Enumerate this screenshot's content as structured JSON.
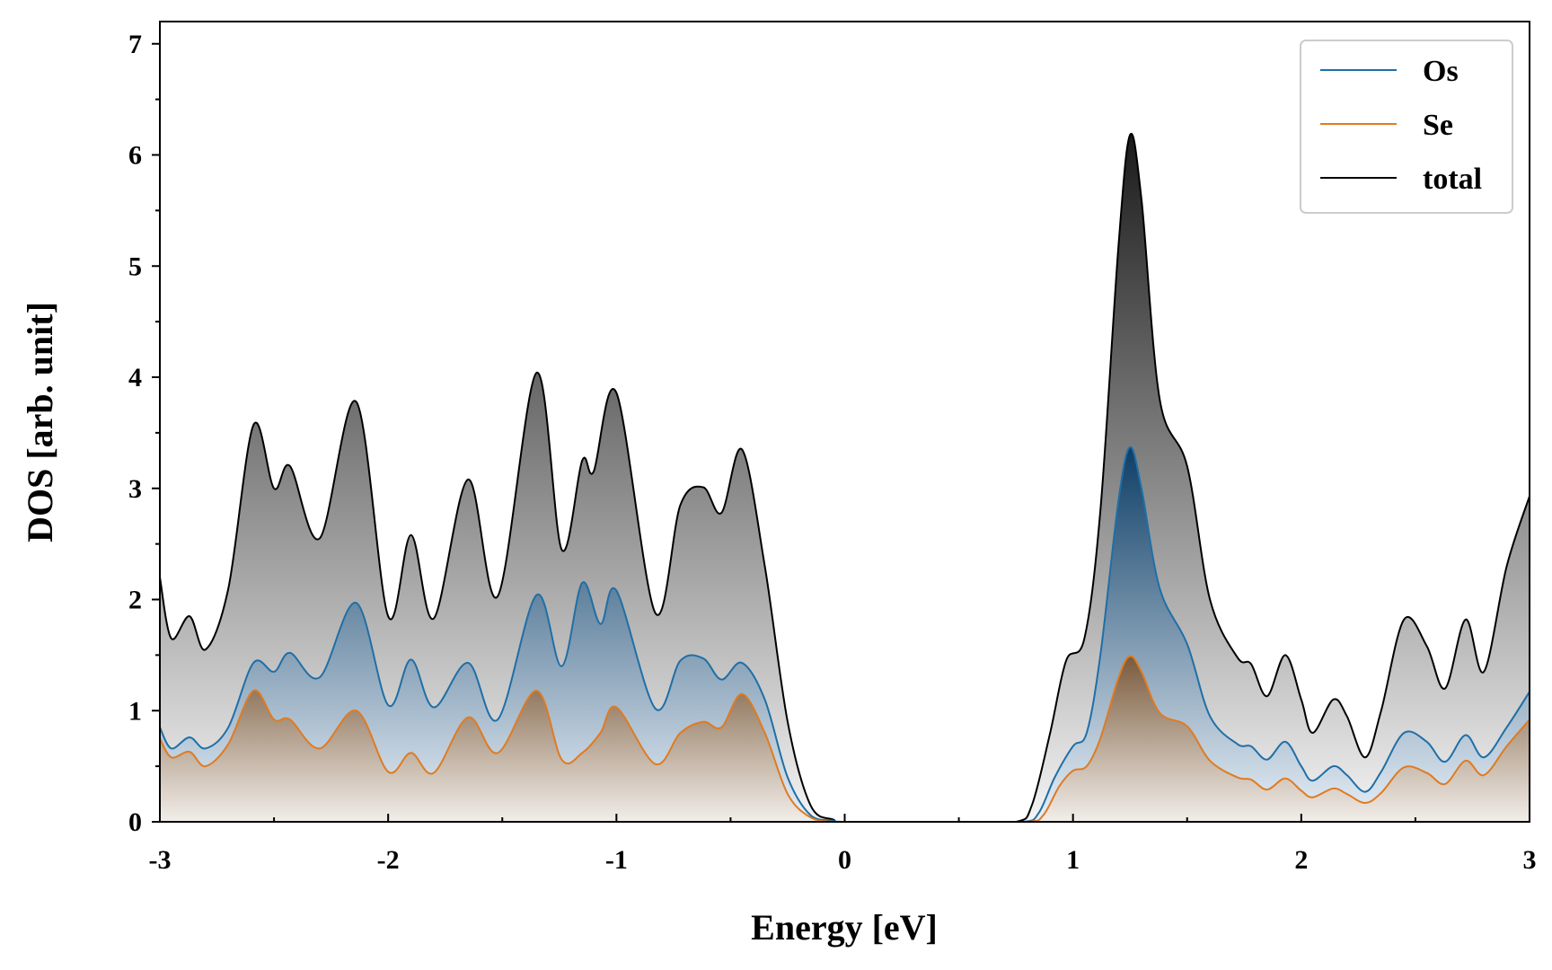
{
  "chart_data": {
    "type": "line",
    "title": "",
    "xlabel": "Energy [eV]",
    "ylabel": "DOS [arb. unit]",
    "xlim": [
      -3,
      3
    ],
    "ylim": [
      0,
      7.2
    ],
    "x_ticks": [
      -3,
      -2,
      -1,
      0,
      1,
      2,
      3
    ],
    "y_ticks": [
      0,
      1,
      2,
      3,
      4,
      5,
      6,
      7
    ],
    "legend_position": "top-right",
    "fill_under_curves": true,
    "series": [
      {
        "name": "total",
        "color": "#000000",
        "points": [
          [
            -3.0,
            2.2
          ],
          [
            -2.95,
            1.65
          ],
          [
            -2.87,
            1.85
          ],
          [
            -2.8,
            1.55
          ],
          [
            -2.7,
            2.1
          ],
          [
            -2.59,
            3.57
          ],
          [
            -2.5,
            3.0
          ],
          [
            -2.43,
            3.2
          ],
          [
            -2.3,
            2.55
          ],
          [
            -2.14,
            3.78
          ],
          [
            -2.0,
            1.85
          ],
          [
            -1.9,
            2.58
          ],
          [
            -1.8,
            1.83
          ],
          [
            -1.65,
            3.08
          ],
          [
            -1.52,
            2.03
          ],
          [
            -1.35,
            4.04
          ],
          [
            -1.24,
            2.45
          ],
          [
            -1.15,
            3.25
          ],
          [
            -1.1,
            3.15
          ],
          [
            -1.0,
            3.86
          ],
          [
            -0.83,
            1.88
          ],
          [
            -0.72,
            2.85
          ],
          [
            -0.62,
            3.01
          ],
          [
            -0.54,
            2.78
          ],
          [
            -0.45,
            3.35
          ],
          [
            -0.35,
            2.3
          ],
          [
            -0.25,
            0.9
          ],
          [
            -0.15,
            0.15
          ],
          [
            -0.05,
            0.02
          ],
          [
            0.0,
            0.0
          ],
          [
            0.5,
            0.0
          ],
          [
            0.75,
            0.0
          ],
          [
            0.82,
            0.15
          ],
          [
            0.9,
            0.8
          ],
          [
            0.97,
            1.45
          ],
          [
            1.05,
            1.65
          ],
          [
            1.12,
            2.8
          ],
          [
            1.2,
            5.2
          ],
          [
            1.25,
            6.18
          ],
          [
            1.3,
            5.6
          ],
          [
            1.38,
            3.8
          ],
          [
            1.5,
            3.2
          ],
          [
            1.6,
            2.0
          ],
          [
            1.72,
            1.48
          ],
          [
            1.78,
            1.42
          ],
          [
            1.85,
            1.13
          ],
          [
            1.93,
            1.5
          ],
          [
            2.0,
            1.1
          ],
          [
            2.05,
            0.8
          ],
          [
            2.14,
            1.1
          ],
          [
            2.2,
            0.95
          ],
          [
            2.28,
            0.58
          ],
          [
            2.35,
            1.0
          ],
          [
            2.45,
            1.82
          ],
          [
            2.55,
            1.58
          ],
          [
            2.63,
            1.2
          ],
          [
            2.72,
            1.82
          ],
          [
            2.8,
            1.35
          ],
          [
            2.9,
            2.3
          ],
          [
            3.0,
            2.93
          ]
        ]
      },
      {
        "name": "Os",
        "color": "#1f6fa6",
        "points": [
          [
            -3.0,
            0.85
          ],
          [
            -2.95,
            0.66
          ],
          [
            -2.87,
            0.76
          ],
          [
            -2.8,
            0.66
          ],
          [
            -2.7,
            0.85
          ],
          [
            -2.59,
            1.43
          ],
          [
            -2.5,
            1.35
          ],
          [
            -2.43,
            1.52
          ],
          [
            -2.3,
            1.3
          ],
          [
            -2.14,
            1.97
          ],
          [
            -2.0,
            1.05
          ],
          [
            -1.9,
            1.46
          ],
          [
            -1.8,
            1.03
          ],
          [
            -1.65,
            1.43
          ],
          [
            -1.52,
            0.92
          ],
          [
            -1.35,
            2.04
          ],
          [
            -1.24,
            1.4
          ],
          [
            -1.15,
            2.15
          ],
          [
            -1.07,
            1.78
          ],
          [
            -1.0,
            2.08
          ],
          [
            -0.83,
            1.02
          ],
          [
            -0.72,
            1.45
          ],
          [
            -0.62,
            1.47
          ],
          [
            -0.54,
            1.28
          ],
          [
            -0.45,
            1.43
          ],
          [
            -0.35,
            1.1
          ],
          [
            -0.25,
            0.4
          ],
          [
            -0.15,
            0.06
          ],
          [
            -0.05,
            0.01
          ],
          [
            0.0,
            0.0
          ],
          [
            0.5,
            0.0
          ],
          [
            0.78,
            0.0
          ],
          [
            0.85,
            0.08
          ],
          [
            0.92,
            0.4
          ],
          [
            1.0,
            0.68
          ],
          [
            1.06,
            0.8
          ],
          [
            1.12,
            1.5
          ],
          [
            1.2,
            2.9
          ],
          [
            1.25,
            3.37
          ],
          [
            1.3,
            3.0
          ],
          [
            1.38,
            2.1
          ],
          [
            1.5,
            1.6
          ],
          [
            1.6,
            0.95
          ],
          [
            1.72,
            0.7
          ],
          [
            1.78,
            0.68
          ],
          [
            1.85,
            0.56
          ],
          [
            1.93,
            0.72
          ],
          [
            2.0,
            0.5
          ],
          [
            2.05,
            0.37
          ],
          [
            2.14,
            0.5
          ],
          [
            2.2,
            0.42
          ],
          [
            2.28,
            0.27
          ],
          [
            2.35,
            0.45
          ],
          [
            2.45,
            0.8
          ],
          [
            2.55,
            0.72
          ],
          [
            2.63,
            0.54
          ],
          [
            2.72,
            0.78
          ],
          [
            2.8,
            0.58
          ],
          [
            2.9,
            0.85
          ],
          [
            3.0,
            1.17
          ]
        ]
      },
      {
        "name": "Se",
        "color": "#e07b20",
        "points": [
          [
            -3.0,
            0.75
          ],
          [
            -2.95,
            0.58
          ],
          [
            -2.87,
            0.63
          ],
          [
            -2.8,
            0.5
          ],
          [
            -2.7,
            0.7
          ],
          [
            -2.59,
            1.18
          ],
          [
            -2.5,
            0.92
          ],
          [
            -2.43,
            0.92
          ],
          [
            -2.3,
            0.66
          ],
          [
            -2.14,
            1.0
          ],
          [
            -2.0,
            0.45
          ],
          [
            -1.9,
            0.62
          ],
          [
            -1.8,
            0.44
          ],
          [
            -1.65,
            0.94
          ],
          [
            -1.52,
            0.62
          ],
          [
            -1.35,
            1.18
          ],
          [
            -1.24,
            0.56
          ],
          [
            -1.15,
            0.62
          ],
          [
            -1.07,
            0.8
          ],
          [
            -1.0,
            1.03
          ],
          [
            -0.83,
            0.52
          ],
          [
            -0.72,
            0.8
          ],
          [
            -0.62,
            0.9
          ],
          [
            -0.54,
            0.85
          ],
          [
            -0.45,
            1.15
          ],
          [
            -0.35,
            0.8
          ],
          [
            -0.25,
            0.25
          ],
          [
            -0.15,
            0.04
          ],
          [
            -0.05,
            0.0
          ],
          [
            0.0,
            0.0
          ],
          [
            0.5,
            0.0
          ],
          [
            0.8,
            0.0
          ],
          [
            0.87,
            0.06
          ],
          [
            0.94,
            0.32
          ],
          [
            1.0,
            0.46
          ],
          [
            1.06,
            0.5
          ],
          [
            1.12,
            0.75
          ],
          [
            1.2,
            1.3
          ],
          [
            1.25,
            1.49
          ],
          [
            1.3,
            1.35
          ],
          [
            1.38,
            0.98
          ],
          [
            1.5,
            0.86
          ],
          [
            1.6,
            0.55
          ],
          [
            1.72,
            0.4
          ],
          [
            1.78,
            0.38
          ],
          [
            1.85,
            0.29
          ],
          [
            1.93,
            0.39
          ],
          [
            2.0,
            0.28
          ],
          [
            2.05,
            0.22
          ],
          [
            2.14,
            0.3
          ],
          [
            2.2,
            0.25
          ],
          [
            2.28,
            0.17
          ],
          [
            2.35,
            0.26
          ],
          [
            2.45,
            0.49
          ],
          [
            2.55,
            0.44
          ],
          [
            2.63,
            0.34
          ],
          [
            2.72,
            0.55
          ],
          [
            2.8,
            0.42
          ],
          [
            2.9,
            0.68
          ],
          [
            3.0,
            0.92
          ]
        ]
      }
    ],
    "legend": [
      {
        "name": "Os",
        "color": "#1f6fa6"
      },
      {
        "name": "Se",
        "color": "#e07b20"
      },
      {
        "name": "total",
        "color": "#000000"
      }
    ]
  }
}
